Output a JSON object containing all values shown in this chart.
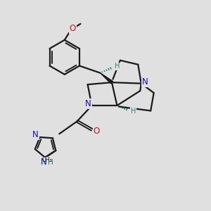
{
  "bg_color": "#e0e0e0",
  "bond_color": "#1a1a1a",
  "bond_width": 1.6,
  "N_color": "#1111bb",
  "O_color": "#cc1111",
  "H_color": "#2a8080",
  "figsize": [
    3.0,
    3.0
  ],
  "dpi": 100,
  "xlim": [
    0,
    10
  ],
  "ylim": [
    0,
    10
  ]
}
